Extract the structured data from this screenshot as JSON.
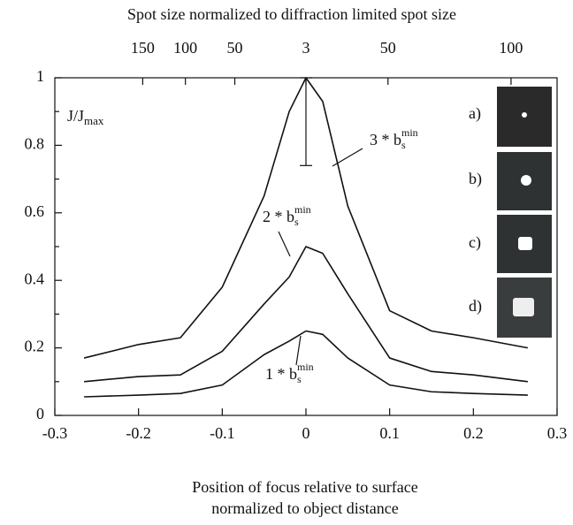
{
  "chart_data": {
    "type": "line",
    "title": "Spot size normalized to diffraction limited spot size",
    "x_label": [
      "Position of focus relative to surface",
      "normalized to object distance"
    ],
    "y_label": {
      "text": "J/J",
      "sub": "max"
    },
    "x": [
      -0.265,
      -0.2,
      -0.15,
      -0.1,
      -0.05,
      -0.02,
      0,
      0.02,
      0.05,
      0.1,
      0.15,
      0.2,
      0.265
    ],
    "series": [
      {
        "color": "#111111",
        "values": [
          0.17,
          0.21,
          0.23,
          0.38,
          0.65,
          0.9,
          1.0,
          0.93,
          0.62,
          0.31,
          0.25,
          0.23,
          0.2
        ]
      },
      {
        "color": "#111111",
        "values": [
          0.1,
          0.115,
          0.12,
          0.19,
          0.33,
          0.41,
          0.5,
          0.48,
          0.36,
          0.17,
          0.13,
          0.12,
          0.1
        ]
      },
      {
        "color": "#111111",
        "values": [
          0.055,
          0.06,
          0.065,
          0.09,
          0.18,
          0.22,
          0.25,
          0.24,
          0.17,
          0.09,
          0.07,
          0.065,
          0.06
        ]
      }
    ],
    "annotations": [
      {
        "text": "3 * b",
        "sub": "s",
        "sup": "min"
      },
      {
        "text": "2 * b",
        "sub": "s",
        "sup": "min"
      },
      {
        "text": "1 * b",
        "sub": "s",
        "sup": "min"
      }
    ],
    "error_bar": {
      "x": 0,
      "low": 0.74,
      "high": 1.0
    },
    "inset_labels": [
      "a)",
      "b)",
      "c)",
      "d)"
    ],
    "xlim": [
      -0.3,
      0.3
    ],
    "xticks": [
      -0.3,
      -0.2,
      -0.1,
      0,
      0.1,
      0.2,
      0.3
    ],
    "x2ticks": [
      {
        "value": -0.195,
        "label": "150"
      },
      {
        "value": -0.144,
        "label": "100"
      },
      {
        "value": -0.085,
        "label": "50"
      },
      {
        "value": 0,
        "label": "3"
      },
      {
        "value": 0.098,
        "label": "50"
      },
      {
        "value": 0.245,
        "label": "100"
      }
    ],
    "ylim": [
      0,
      1
    ],
    "yticks": [
      0,
      0.2,
      0.4,
      0.6,
      0.8,
      1
    ],
    "yminorticks": [
      0.1,
      0.3,
      0.5,
      0.7,
      0.9
    ]
  }
}
